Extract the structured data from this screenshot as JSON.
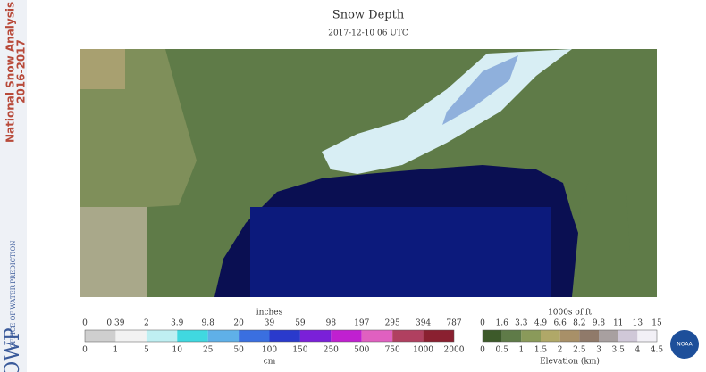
{
  "sidebar": {
    "title": "National Snow Analysis",
    "years": "2016-2017",
    "office": "OFFICE OF WATER PREDICTION",
    "logo": "OWP"
  },
  "header": {
    "title": "Snow Depth",
    "subtitle": "2017-12-10 06 UTC"
  },
  "snow_legend": {
    "top_unit": "inches",
    "inches": [
      0,
      0.39,
      2,
      3.9,
      9.8,
      20,
      39,
      59,
      98,
      197,
      295,
      394,
      787
    ],
    "cm": [
      0,
      1,
      5,
      10,
      25,
      50,
      100,
      150,
      250,
      500,
      750,
      1000,
      2000
    ],
    "bottom_unit": "cm"
  },
  "elevation_legend": {
    "top_unit": "1000s of ft",
    "ft": [
      0,
      1.6,
      3.3,
      4.9,
      6.6,
      8.2,
      9.8,
      11,
      13,
      15
    ],
    "km": [
      0,
      0.5,
      1,
      1.5,
      2,
      2.5,
      3,
      3.5,
      4,
      4.5
    ],
    "bottom_unit": "Elevation (km)"
  },
  "noaa": "NOAA"
}
